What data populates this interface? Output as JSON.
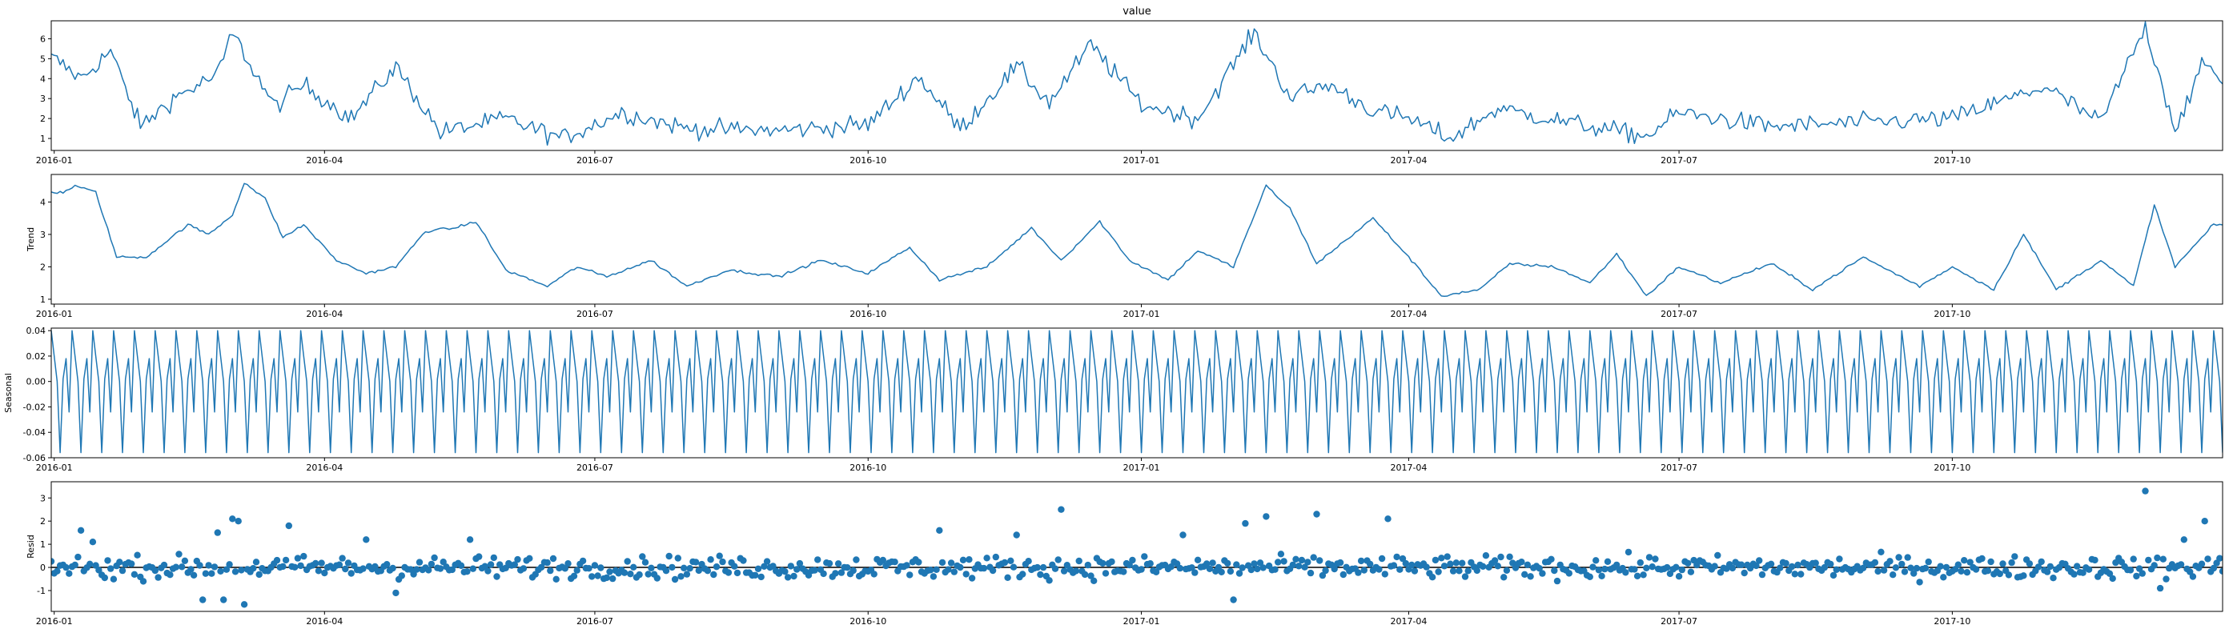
{
  "chart_data": {
    "type": "line",
    "title": "value",
    "x_range": [
      "2015-12-31",
      "2017-12-31"
    ],
    "x_ticks": [
      "2016-01",
      "2016-04",
      "2016-07",
      "2016-10",
      "2017-01",
      "2017-04",
      "2017-07",
      "2017-10"
    ],
    "line_color": "#1f77b4",
    "panels": [
      {
        "id": "observed",
        "kind": "line",
        "ylabel": "",
        "ylim": [
          0.4,
          6.9
        ],
        "yticks": [
          1,
          2,
          3,
          4,
          5,
          6
        ],
        "keypoints": [
          [
            "2016-01-01",
            5.0
          ],
          [
            "2016-01-10",
            4.0
          ],
          [
            "2016-01-20",
            5.4
          ],
          [
            "2016-01-30",
            1.6
          ],
          [
            "2016-02-10",
            3.0
          ],
          [
            "2016-02-25",
            4.2
          ],
          [
            "2016-03-01",
            6.3
          ],
          [
            "2016-03-15",
            2.6
          ],
          [
            "2016-03-25",
            3.7
          ],
          [
            "2016-04-10",
            2.0
          ],
          [
            "2016-04-25",
            4.6
          ],
          [
            "2016-05-10",
            1.3
          ],
          [
            "2016-06-01",
            2.0
          ],
          [
            "2016-06-20",
            1.0
          ],
          [
            "2016-07-10",
            2.3
          ],
          [
            "2016-08-01",
            1.5
          ],
          [
            "2016-09-01",
            1.4
          ],
          [
            "2016-10-01",
            1.7
          ],
          [
            "2016-10-18",
            4.1
          ],
          [
            "2016-11-01",
            1.5
          ],
          [
            "2016-11-20",
            4.6
          ],
          [
            "2016-12-01",
            2.8
          ],
          [
            "2016-12-15",
            5.7
          ],
          [
            "2017-01-01",
            2.7
          ],
          [
            "2017-01-20",
            2.0
          ],
          [
            "2017-02-08",
            6.3
          ],
          [
            "2017-02-20",
            3.1
          ],
          [
            "2017-03-05",
            3.7
          ],
          [
            "2017-03-20",
            2.4
          ],
          [
            "2017-04-01",
            2.0
          ],
          [
            "2017-04-15",
            1.0
          ],
          [
            "2017-05-01",
            2.5
          ],
          [
            "2017-06-01",
            1.6
          ],
          [
            "2017-06-20",
            1.1
          ],
          [
            "2017-07-01",
            2.3
          ],
          [
            "2017-08-01",
            1.6
          ],
          [
            "2017-09-01",
            1.8
          ],
          [
            "2017-10-01",
            2.0
          ],
          [
            "2017-11-01",
            3.6
          ],
          [
            "2017-11-20",
            1.8
          ],
          [
            "2017-12-05",
            6.6
          ],
          [
            "2017-12-15",
            1.5
          ],
          [
            "2017-12-25",
            4.8
          ],
          [
            "2017-12-31",
            3.8
          ]
        ]
      },
      {
        "id": "trend",
        "kind": "line",
        "ylabel": "Trend",
        "ylim": [
          0.85,
          4.85
        ],
        "yticks": [
          1,
          2,
          3,
          4
        ],
        "keypoints": [
          [
            "2016-01-04",
            4.3
          ],
          [
            "2016-01-08",
            4.5
          ],
          [
            "2016-01-15",
            4.3
          ],
          [
            "2016-01-22",
            2.3
          ],
          [
            "2016-02-01",
            2.3
          ],
          [
            "2016-02-15",
            3.3
          ],
          [
            "2016-02-22",
            3.0
          ],
          [
            "2016-03-01",
            3.6
          ],
          [
            "2016-03-05",
            4.6
          ],
          [
            "2016-03-12",
            4.1
          ],
          [
            "2016-03-18",
            2.9
          ],
          [
            "2016-03-25",
            3.3
          ],
          [
            "2016-04-05",
            2.2
          ],
          [
            "2016-04-15",
            1.8
          ],
          [
            "2016-04-25",
            2.0
          ],
          [
            "2016-05-05",
            3.1
          ],
          [
            "2016-05-15",
            3.2
          ],
          [
            "2016-05-22",
            3.4
          ],
          [
            "2016-06-01",
            1.9
          ],
          [
            "2016-06-15",
            1.4
          ],
          [
            "2016-06-25",
            2.0
          ],
          [
            "2016-07-05",
            1.7
          ],
          [
            "2016-07-20",
            2.2
          ],
          [
            "2016-08-01",
            1.4
          ],
          [
            "2016-08-15",
            1.9
          ],
          [
            "2016-09-01",
            1.7
          ],
          [
            "2016-09-15",
            2.2
          ],
          [
            "2016-10-01",
            1.8
          ],
          [
            "2016-10-15",
            2.6
          ],
          [
            "2016-10-25",
            1.6
          ],
          [
            "2016-11-10",
            2.0
          ],
          [
            "2016-11-25",
            3.2
          ],
          [
            "2016-12-05",
            2.2
          ],
          [
            "2016-12-18",
            3.4
          ],
          [
            "2016-12-28",
            2.2
          ],
          [
            "2017-01-10",
            1.6
          ],
          [
            "2017-01-20",
            2.5
          ],
          [
            "2017-02-01",
            2.0
          ],
          [
            "2017-02-12",
            4.5
          ],
          [
            "2017-02-20",
            3.8
          ],
          [
            "2017-03-01",
            2.1
          ],
          [
            "2017-03-20",
            3.5
          ],
          [
            "2017-04-01",
            2.3
          ],
          [
            "2017-04-12",
            1.1
          ],
          [
            "2017-04-25",
            1.3
          ],
          [
            "2017-05-05",
            2.1
          ],
          [
            "2017-05-20",
            2.0
          ],
          [
            "2017-06-01",
            1.5
          ],
          [
            "2017-06-10",
            2.4
          ],
          [
            "2017-06-20",
            1.1
          ],
          [
            "2017-07-01",
            2.0
          ],
          [
            "2017-07-15",
            1.5
          ],
          [
            "2017-08-01",
            2.1
          ],
          [
            "2017-08-15",
            1.3
          ],
          [
            "2017-09-01",
            2.3
          ],
          [
            "2017-09-20",
            1.4
          ],
          [
            "2017-10-01",
            2.0
          ],
          [
            "2017-10-15",
            1.3
          ],
          [
            "2017-10-25",
            3.0
          ],
          [
            "2017-11-05",
            1.3
          ],
          [
            "2017-11-20",
            2.2
          ],
          [
            "2017-12-01",
            1.4
          ],
          [
            "2017-12-08",
            3.9
          ],
          [
            "2017-12-15",
            2.0
          ],
          [
            "2017-12-28",
            3.3
          ]
        ]
      },
      {
        "id": "seasonal",
        "kind": "line",
        "ylabel": "Seasonal",
        "ylim": [
          -0.06,
          0.042
        ],
        "yticks": [
          -0.06,
          -0.04,
          -0.02,
          0.0,
          0.02,
          0.04
        ],
        "period_days": 7,
        "pattern": [
          0.04,
          0.02,
          0.0,
          -0.056,
          0.002,
          0.018,
          -0.024
        ]
      },
      {
        "id": "resid",
        "kind": "scatter",
        "ylabel": "Resid",
        "ylim": [
          -1.9,
          3.7
        ],
        "yticks": [
          -1,
          0,
          1,
          2,
          3
        ],
        "zero_line": true,
        "highlights": [
          [
            "2016-01-10",
            1.6
          ],
          [
            "2016-01-14",
            1.1
          ],
          [
            "2016-02-25",
            1.5
          ],
          [
            "2016-03-01",
            2.1
          ],
          [
            "2016-03-03",
            2.0
          ],
          [
            "2016-02-20",
            -1.4
          ],
          [
            "2016-02-27",
            -1.4
          ],
          [
            "2016-03-05",
            -1.6
          ],
          [
            "2016-03-20",
            1.8
          ],
          [
            "2016-04-15",
            1.2
          ],
          [
            "2016-04-25",
            -1.1
          ],
          [
            "2016-05-20",
            1.2
          ],
          [
            "2016-10-25",
            1.6
          ],
          [
            "2016-12-05",
            2.5
          ],
          [
            "2016-11-20",
            1.4
          ],
          [
            "2017-01-15",
            1.4
          ],
          [
            "2017-02-05",
            1.9
          ],
          [
            "2017-02-12",
            2.2
          ],
          [
            "2017-02-01",
            -1.4
          ],
          [
            "2017-03-01",
            2.3
          ],
          [
            "2017-03-25",
            2.1
          ],
          [
            "2017-12-05",
            3.3
          ],
          [
            "2017-12-25",
            2.0
          ],
          [
            "2017-12-10",
            -0.9
          ],
          [
            "2017-12-18",
            1.2
          ]
        ]
      }
    ]
  }
}
